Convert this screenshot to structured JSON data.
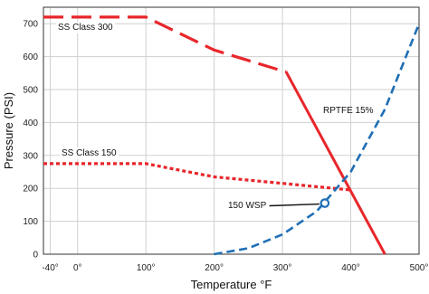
{
  "chart_data": {
    "type": "line",
    "title": "",
    "xlabel": "Temperature °F",
    "ylabel": "Pressure (PSI)",
    "xlim": [
      -50,
      500
    ],
    "ylim": [
      0,
      750
    ],
    "x_ticks": [
      {
        "value": -40,
        "label": "-40°"
      },
      {
        "value": 0,
        "label": "0°"
      },
      {
        "value": 100,
        "label": "100°"
      },
      {
        "value": 200,
        "label": "200°"
      },
      {
        "value": 300,
        "label": "300°"
      },
      {
        "value": 400,
        "label": "400°"
      },
      {
        "value": 500,
        "label": "500°"
      }
    ],
    "y_ticks": [
      0,
      100,
      200,
      300,
      400,
      500,
      600,
      700
    ],
    "grid": true,
    "series": [
      {
        "name": "SS Class 300",
        "color": "#e8262b",
        "style": "long-dash",
        "x": [
          -50,
          100,
          200,
          295,
          305
        ],
        "y": [
          720,
          720,
          620,
          560,
          555
        ]
      },
      {
        "name": "RPTFE 15%",
        "color": "#e8262b",
        "style": "solid",
        "x": [
          305,
          450
        ],
        "y": [
          555,
          0
        ]
      },
      {
        "name": "SS Class 150",
        "color": "#e8262b",
        "style": "dotted",
        "x": [
          -50,
          100,
          200,
          300,
          400
        ],
        "y": [
          275,
          275,
          235,
          215,
          195
        ]
      },
      {
        "name": "150 WSP",
        "color": "#1f6fb5",
        "style": "dashed",
        "x": [
          200,
          250,
          300,
          350,
          400,
          450,
          500
        ],
        "y": [
          0,
          18,
          60,
          130,
          250,
          440,
          700
        ]
      }
    ],
    "annotations": [
      {
        "text": "SS Class 300",
        "series": "SS Class 300"
      },
      {
        "text": "SS Class 150",
        "series": "SS Class 150"
      },
      {
        "text": "RPTFE 15%",
        "series": "RPTFE 15%"
      },
      {
        "text": "150 WSP",
        "series": "150 WSP",
        "marker_point": [
          362,
          155
        ]
      }
    ]
  }
}
